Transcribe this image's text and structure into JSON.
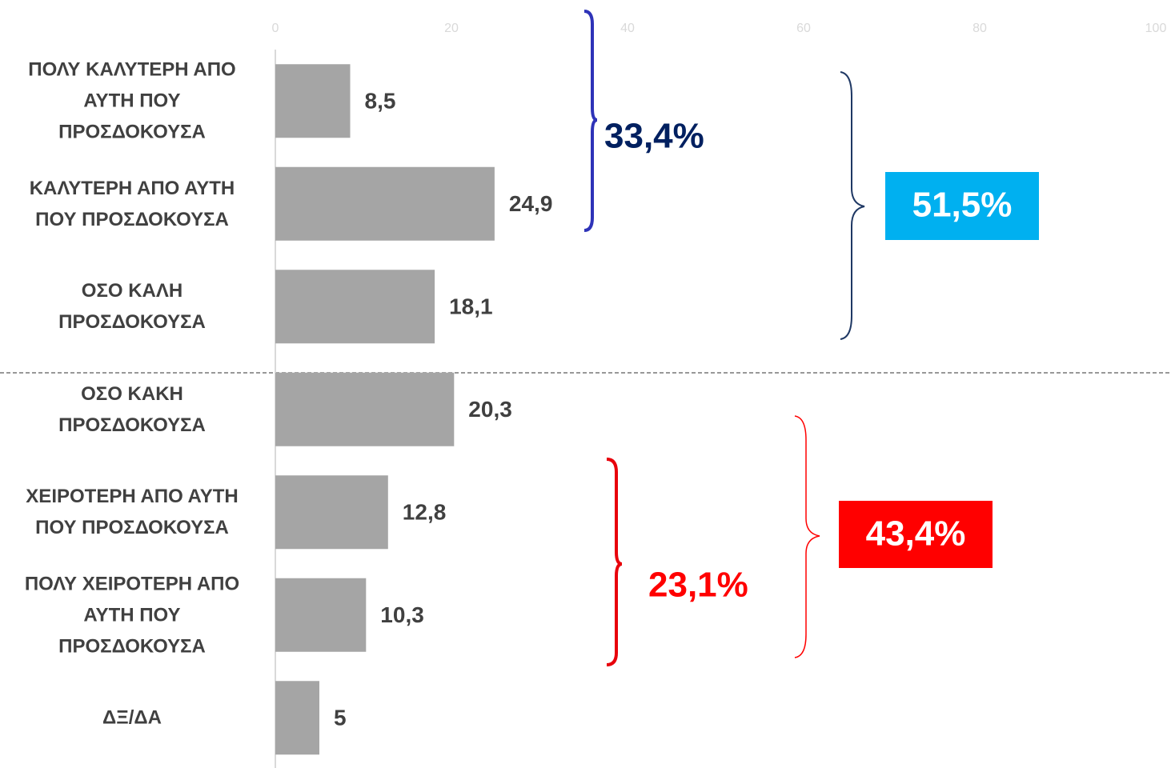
{
  "chart_data": {
    "type": "bar",
    "orientation": "horizontal",
    "categories": [
      "ΠΟΛΥ ΚΑΛΥΤΕΡΗ ΑΠΟ\nΑΥΤΗ ΠΟΥ\nΠΡΟΣΔΟΚΟΥΣΑ",
      "ΚΑΛΥΤΕΡΗ ΑΠΟ ΑΥΤΗ\nΠΟΥ ΠΡΟΣΔΟΚΟΥΣΑ",
      "ΟΣΟ ΚΑΛΗ\nΠΡΟΣΔΟΚΟΥΣΑ",
      "ΟΣΟ ΚΑΚΗ\nΠΡΟΣΔΟΚΟΥΣΑ",
      "ΧΕΙΡΟΤΕΡΗ ΑΠΟ ΑΥΤΗ\nΠΟΥ ΠΡΟΣΔΟΚΟΥΣΑ",
      "ΠΟΛΥ ΧΕΙΡΟΤΕΡΗ ΑΠΟ\nΑΥΤΗ ΠΟΥ\nΠΡΟΣΔΟΚΟΥΣΑ",
      "ΔΞ/ΔΑ"
    ],
    "values": [
      8.5,
      24.9,
      18.1,
      20.3,
      12.8,
      10.3,
      5
    ],
    "value_labels": [
      "8,5",
      "24,9",
      "18,1",
      "20,3",
      "12,8",
      "10,3",
      "5"
    ],
    "color": "#a5a5a5",
    "xlim": [
      0,
      100
    ],
    "xticks": [
      0,
      20,
      40,
      60,
      80,
      100
    ],
    "annotations": [
      "33,4%",
      "51,5%",
      "23,1%",
      "43,4%"
    ]
  }
}
